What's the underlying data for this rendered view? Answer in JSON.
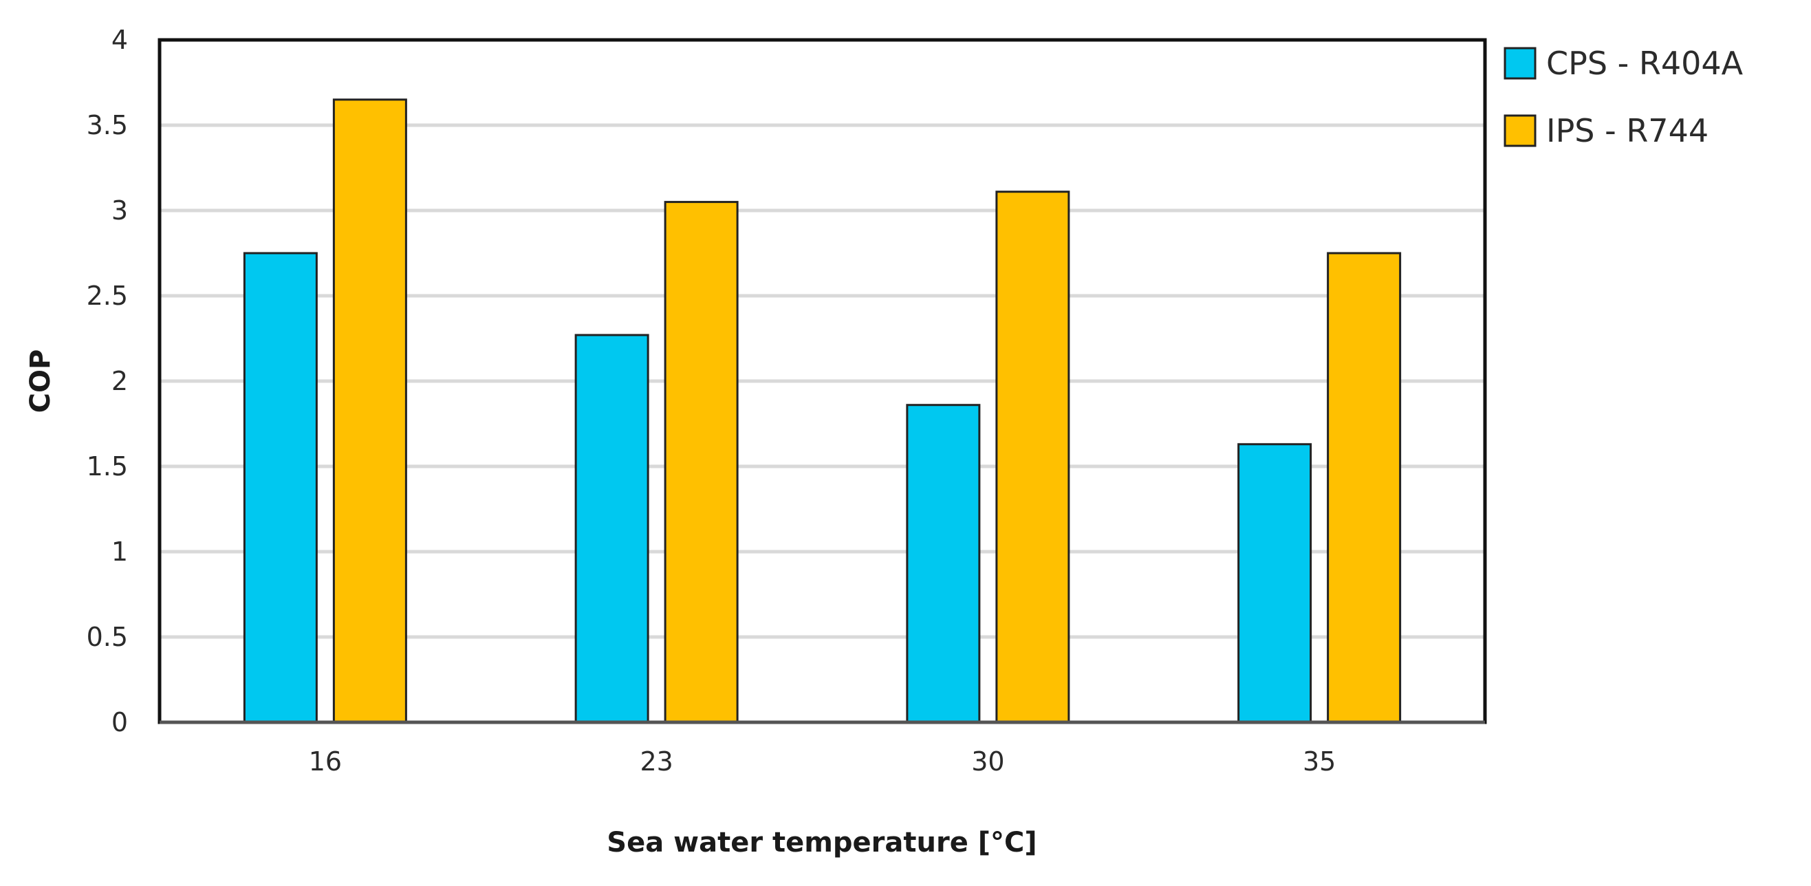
{
  "chart_data": {
    "type": "bar",
    "categories": [
      "16",
      "23",
      "30",
      "35"
    ],
    "series": [
      {
        "name": "CPS - R404A",
        "color": "#00c8f0",
        "values": [
          2.75,
          2.27,
          1.86,
          1.63
        ]
      },
      {
        "name": "IPS - R744",
        "color": "#ffc000",
        "values": [
          3.65,
          3.05,
          3.11,
          2.75
        ]
      }
    ],
    "title": "",
    "xlabel": "Sea water temperature [°C]",
    "ylabel": "COP",
    "ylim": [
      0,
      4
    ],
    "yticks": [
      "0",
      "0.5",
      "1",
      "1.5",
      "2",
      "2.5",
      "3",
      "3.5",
      "4"
    ],
    "grid": true,
    "legend_position": "right"
  }
}
